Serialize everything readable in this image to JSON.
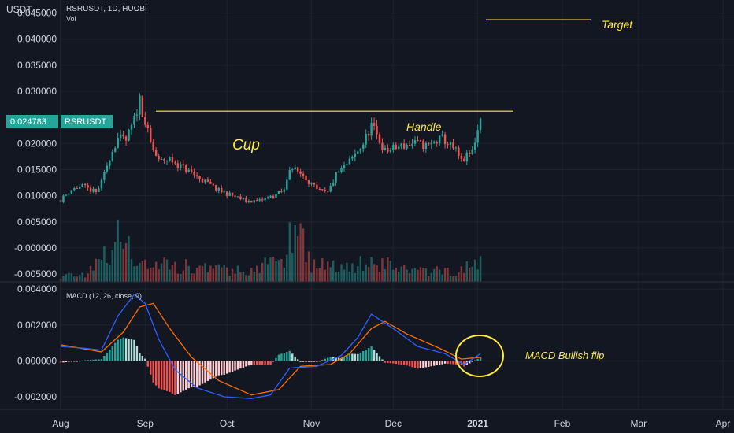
{
  "header": {
    "currency": "USDT",
    "symbol_line": "RSRUSDT, 1D, HUOBI",
    "vol_label": "Vol",
    "macd_label": "MACD (12, 26, close, 9)"
  },
  "price_badge": {
    "value": "0.024783",
    "symbol": "RSRUSDT"
  },
  "annotations": {
    "target": "Target",
    "cup": "Cup",
    "handle": "Handle",
    "macd_flip": "MACD Bullish flip"
  },
  "colors": {
    "background": "#131722",
    "up": "#26a69a",
    "down": "#ef5350",
    "annotation": "#ffeb3b",
    "macd_line": "#2962ff",
    "signal_line": "#ff6d00",
    "axis_text": "#d1d4dc",
    "badge": "#26a69a"
  },
  "chart_data": [
    {
      "type": "candlestick",
      "title": "RSRUSDT, 1D, HUOBI",
      "ylabel": "USDT",
      "y_ticks": [
        "0.045000",
        "0.040000",
        "0.035000",
        "0.030000",
        "0.020000",
        "0.015000",
        "0.010000",
        "0.005000",
        "-0.000000",
        "-0.005000"
      ],
      "ylim": [
        -0.0065,
        0.0475
      ],
      "x_ticks": [
        "Aug",
        "Sep",
        "Oct",
        "Nov",
        "Dec",
        "2021",
        "Feb",
        "Mar",
        "Apr"
      ],
      "x_range": [
        "2020-08-01",
        "2021-04-05"
      ],
      "last_price": 0.024783,
      "close_anchors": [
        [
          "2020-08-01",
          0.0092
        ],
        [
          "2020-08-05",
          0.0112
        ],
        [
          "2020-08-09",
          0.0118
        ],
        [
          "2020-08-14",
          0.0106
        ],
        [
          "2020-08-16",
          0.0125
        ],
        [
          "2020-08-19",
          0.0175
        ],
        [
          "2020-08-22",
          0.021
        ],
        [
          "2020-08-25",
          0.0205
        ],
        [
          "2020-08-28",
          0.0245
        ],
        [
          "2020-08-30",
          0.0285
        ],
        [
          "2020-09-01",
          0.024
        ],
        [
          "2020-09-03",
          0.02
        ],
        [
          "2020-09-06",
          0.0165
        ],
        [
          "2020-09-10",
          0.017
        ],
        [
          "2020-09-16",
          0.015
        ],
        [
          "2020-09-22",
          0.013
        ],
        [
          "2020-09-28",
          0.011
        ],
        [
          "2020-10-03",
          0.01
        ],
        [
          "2020-10-08",
          0.009
        ],
        [
          "2020-10-13",
          0.009
        ],
        [
          "2020-10-18",
          0.01
        ],
        [
          "2020-10-22",
          0.011
        ],
        [
          "2020-10-24",
          0.0155
        ],
        [
          "2020-10-29",
          0.014
        ],
        [
          "2020-11-03",
          0.011
        ],
        [
          "2020-11-07",
          0.0105
        ],
        [
          "2020-11-10",
          0.014
        ],
        [
          "2020-11-15",
          0.0165
        ],
        [
          "2020-11-20",
          0.02
        ],
        [
          "2020-11-23",
          0.0235
        ],
        [
          "2020-11-28",
          0.0185
        ],
        [
          "2020-12-04",
          0.0195
        ],
        [
          "2020-12-09",
          0.02
        ],
        [
          "2020-12-14",
          0.0195
        ],
        [
          "2020-12-19",
          0.021
        ],
        [
          "2020-12-24",
          0.0185
        ],
        [
          "2020-12-26",
          0.0165
        ],
        [
          "2020-12-30",
          0.0185
        ],
        [
          "2021-01-02",
          0.0248
        ]
      ],
      "volume_anchors": [
        [
          "2020-08-01",
          0.08
        ],
        [
          "2020-08-10",
          0.12
        ],
        [
          "2020-08-19",
          0.4
        ],
        [
          "2020-08-23",
          0.65
        ],
        [
          "2020-08-28",
          0.3
        ],
        [
          "2020-09-05",
          0.25
        ],
        [
          "2020-09-20",
          0.2
        ],
        [
          "2020-10-10",
          0.15
        ],
        [
          "2020-10-22",
          0.35
        ],
        [
          "2020-10-26",
          0.95
        ],
        [
          "2020-11-01",
          0.25
        ],
        [
          "2020-11-15",
          0.22
        ],
        [
          "2020-11-23",
          0.3
        ],
        [
          "2020-12-10",
          0.15
        ],
        [
          "2020-12-25",
          0.15
        ],
        [
          "2021-01-02",
          0.28
        ]
      ],
      "resistance_level": 0.0262,
      "target_level": 0.0437
    },
    {
      "type": "line",
      "title": "MACD (12, 26, close, 9)",
      "y_ticks": [
        "0.004000",
        "0.002000",
        "0.000000",
        "-0.002000"
      ],
      "ylim": [
        -0.0027,
        0.0044
      ],
      "series": [
        {
          "name": "MACD",
          "points": [
            [
              "2020-08-01",
              0.0008
            ],
            [
              "2020-08-10",
              0.0007
            ],
            [
              "2020-08-16",
              0.0006
            ],
            [
              "2020-08-22",
              0.0025
            ],
            [
              "2020-08-28",
              0.0037
            ],
            [
              "2020-09-01",
              0.0032
            ],
            [
              "2020-09-06",
              0.0012
            ],
            [
              "2020-09-12",
              -0.0005
            ],
            [
              "2020-09-20",
              -0.0015
            ],
            [
              "2020-09-30",
              -0.002
            ],
            [
              "2020-10-10",
              -0.0021
            ],
            [
              "2020-10-17",
              -0.0019
            ],
            [
              "2020-10-24",
              -0.0004
            ],
            [
              "2020-11-03",
              -0.0003
            ],
            [
              "2020-11-12",
              0.0003
            ],
            [
              "2020-11-18",
              0.0013
            ],
            [
              "2020-11-23",
              0.0026
            ],
            [
              "2020-12-01",
              0.0018
            ],
            [
              "2020-12-10",
              0.0008
            ],
            [
              "2020-12-20",
              0.0004
            ],
            [
              "2020-12-27",
              -0.0002
            ],
            [
              "2021-01-02",
              0.0004
            ]
          ]
        },
        {
          "name": "Signal",
          "points": [
            [
              "2020-08-01",
              0.0009
            ],
            [
              "2020-08-16",
              0.0005
            ],
            [
              "2020-08-24",
              0.0016
            ],
            [
              "2020-08-30",
              0.003
            ],
            [
              "2020-09-04",
              0.0032
            ],
            [
              "2020-09-10",
              0.0018
            ],
            [
              "2020-09-18",
              0.0002
            ],
            [
              "2020-09-28",
              -0.0011
            ],
            [
              "2020-10-10",
              -0.0019
            ],
            [
              "2020-10-20",
              -0.0016
            ],
            [
              "2020-10-28",
              -0.0003
            ],
            [
              "2020-11-08",
              -0.0002
            ],
            [
              "2020-11-15",
              0.0004
            ],
            [
              "2020-11-23",
              0.0018
            ],
            [
              "2020-11-28",
              0.0022
            ],
            [
              "2020-12-06",
              0.0015
            ],
            [
              "2020-12-18",
              0.0007
            ],
            [
              "2020-12-26",
              0.0001
            ],
            [
              "2021-01-02",
              0.0002
            ]
          ]
        }
      ]
    }
  ]
}
